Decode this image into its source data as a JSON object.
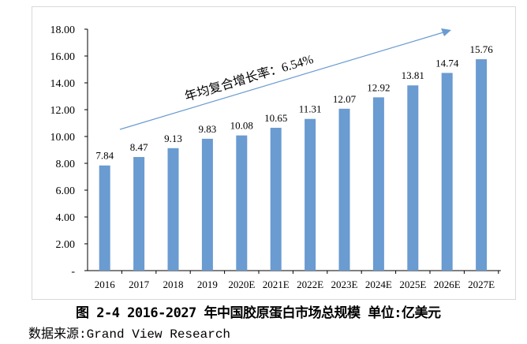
{
  "chart_data": {
    "type": "bar",
    "categories": [
      "2016",
      "2017",
      "2018",
      "2019",
      "2020E",
      "2021E",
      "2022E",
      "2023E",
      "2024E",
      "2025E",
      "2026E",
      "2027E"
    ],
    "values": [
      7.84,
      8.47,
      9.13,
      9.83,
      10.08,
      10.65,
      11.31,
      12.07,
      12.92,
      13.81,
      14.74,
      15.76
    ],
    "value_labels": [
      "7.84",
      "8.47",
      "9.13",
      "9.83",
      "10.08",
      "10.65",
      "11.31",
      "12.07",
      "12.92",
      "13.81",
      "14.74",
      "15.76"
    ],
    "ylim": [
      0,
      18
    ],
    "yticks": [
      "-",
      "2.00",
      "4.00",
      "6.00",
      "8.00",
      "10.00",
      "12.00",
      "14.00",
      "16.00",
      "18.00"
    ],
    "annotation": "年均复合增长率：6.54%",
    "bar_color": "#6a9bd1",
    "xlabel": "",
    "ylabel": "",
    "grid": false
  },
  "caption": "图 2-4 2016-2027 年中国胶原蛋白市场总规模   单位:亿美元",
  "source": "数据来源:Grand View Research"
}
